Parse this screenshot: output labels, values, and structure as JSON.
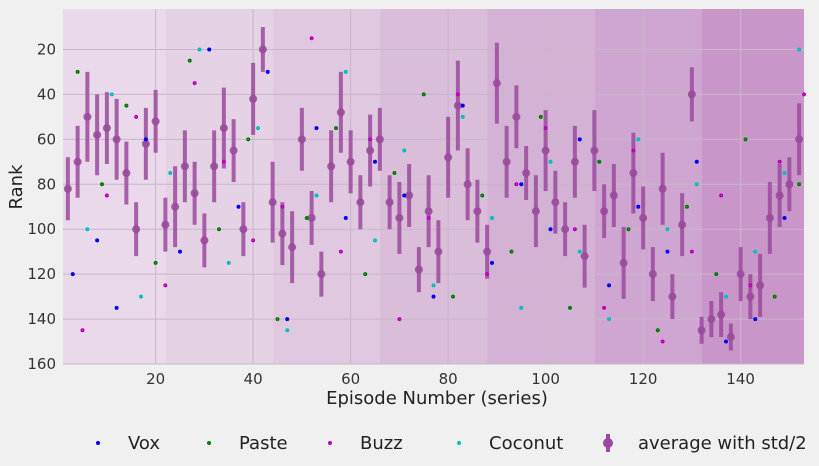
{
  "chart_data": {
    "type": "scatter",
    "title": "",
    "xlabel": "Episode Number (series)",
    "ylabel": "Rank",
    "xlim": [
      1,
      153
    ],
    "ylim": [
      160,
      2
    ],
    "x_ticks": [
      20,
      40,
      60,
      80,
      100,
      120,
      140
    ],
    "y_ticks": [
      20,
      40,
      60,
      80,
      100,
      120,
      140,
      160
    ],
    "grid": true,
    "legend_position": "bottom",
    "background_bands": [
      {
        "from": 1,
        "to": 22,
        "color": "#ead9ea"
      },
      {
        "from": 22,
        "to": 44,
        "color": "#e5d2e5"
      },
      {
        "from": 44,
        "to": 66,
        "color": "#e0c9e0"
      },
      {
        "from": 66,
        "to": 88,
        "color": "#d9bdd9"
      },
      {
        "from": 88,
        "to": 110,
        "color": "#d4b2d6"
      },
      {
        "from": 110,
        "to": 132,
        "color": "#cfa6d1"
      },
      {
        "from": 132,
        "to": 153,
        "color": "#c896c9"
      }
    ],
    "legend": [
      {
        "label": "Vox",
        "color": "#0000ee",
        "marker": "dot"
      },
      {
        "label": "Paste",
        "color": "#008000",
        "marker": "dot"
      },
      {
        "label": "Buzz",
        "color": "#c000c0",
        "marker": "dot"
      },
      {
        "label": "Coconut",
        "color": "#00bfbf",
        "marker": "dot"
      },
      {
        "label": "average with std/2",
        "color": "#9a4a9c",
        "marker": "errorbar"
      }
    ],
    "series": [
      {
        "name": "average with std/2",
        "color": "#9a4a9c",
        "x": [
          2,
          4,
          6,
          8,
          10,
          12,
          14,
          16,
          18,
          20,
          22,
          24,
          26,
          28,
          30,
          32,
          34,
          36,
          38,
          40,
          42,
          44,
          46,
          48,
          50,
          52,
          54,
          56,
          58,
          60,
          62,
          64,
          66,
          68,
          70,
          72,
          74,
          76,
          78,
          80,
          82,
          84,
          86,
          88,
          90,
          92,
          94,
          96,
          98,
          100,
          102,
          104,
          106,
          108,
          110,
          112,
          114,
          116,
          118,
          120,
          122,
          124,
          126,
          128,
          130,
          132,
          134,
          136,
          138,
          140,
          142,
          144,
          146,
          148,
          150,
          152
        ],
        "y": [
          82,
          70,
          50,
          58,
          55,
          60,
          75,
          100,
          62,
          52,
          98,
          90,
          72,
          84,
          105,
          72,
          55,
          65,
          100,
          42,
          20,
          88,
          102,
          108,
          60,
          95,
          120,
          72,
          48,
          70,
          88,
          65,
          60,
          88,
          95,
          85,
          118,
          92,
          110,
          68,
          45,
          80,
          92,
          110,
          35,
          70,
          50,
          75,
          92,
          65,
          88,
          100,
          70,
          112,
          65,
          92,
          85,
          115,
          75,
          95,
          120,
          82,
          130,
          98,
          40,
          145,
          140,
          138,
          148,
          120,
          130,
          125,
          95,
          85,
          80,
          60
        ],
        "err": [
          14,
          16,
          20,
          18,
          16,
          18,
          14,
          12,
          16,
          14,
          12,
          18,
          16,
          14,
          12,
          16,
          18,
          14,
          12,
          16,
          10,
          18,
          14,
          16,
          14,
          12,
          10,
          16,
          18,
          14,
          12,
          16,
          14,
          12,
          16,
          14,
          10,
          16,
          14,
          18,
          20,
          16,
          14,
          12,
          18,
          16,
          14,
          12,
          16,
          18,
          14,
          12,
          16,
          14,
          18,
          12,
          14,
          16,
          18,
          14,
          12,
          16,
          10,
          14,
          12,
          6,
          8,
          10,
          6,
          12,
          10,
          14,
          16,
          14,
          12,
          16
        ]
      },
      {
        "name": "Vox",
        "color": "#0000ee",
        "x": [
          3,
          8,
          12,
          18,
          25,
          31,
          37,
          43,
          47,
          53,
          59,
          65,
          71,
          77,
          83,
          89,
          95,
          101,
          107,
          113,
          119,
          125,
          131,
          137,
          143,
          149
        ],
        "y": [
          120,
          105,
          135,
          60,
          110,
          20,
          90,
          30,
          140,
          55,
          95,
          70,
          85,
          130,
          45,
          115,
          80,
          100,
          60,
          125,
          90,
          110,
          70,
          150,
          140,
          95
        ]
      },
      {
        "name": "Paste",
        "color": "#008000",
        "x": [
          4,
          9,
          14,
          20,
          27,
          33,
          39,
          45,
          51,
          57,
          63,
          69,
          75,
          81,
          87,
          93,
          99,
          105,
          111,
          117,
          123,
          129,
          135,
          141,
          147,
          152
        ],
        "y": [
          30,
          80,
          45,
          115,
          25,
          100,
          60,
          140,
          95,
          55,
          120,
          75,
          40,
          130,
          85,
          110,
          50,
          135,
          70,
          100,
          145,
          90,
          120,
          60,
          130,
          80
        ]
      },
      {
        "name": "Buzz",
        "color": "#c000c0",
        "x": [
          5,
          10,
          16,
          22,
          28,
          34,
          40,
          46,
          52,
          58,
          64,
          70,
          76,
          82,
          88,
          94,
          100,
          106,
          112,
          118,
          124,
          130,
          136,
          142,
          148,
          153
        ],
        "y": [
          145,
          85,
          50,
          125,
          35,
          70,
          105,
          90,
          15,
          110,
          60,
          140,
          95,
          40,
          120,
          80,
          55,
          100,
          135,
          65,
          150,
          110,
          85,
          125,
          70,
          40
        ]
      },
      {
        "name": "Coconut",
        "color": "#00bfbf",
        "x": [
          6,
          11,
          17,
          23,
          29,
          35,
          41,
          47,
          53,
          59,
          65,
          71,
          77,
          83,
          89,
          95,
          101,
          107,
          113,
          119,
          125,
          131,
          137,
          143,
          149,
          152
        ],
        "y": [
          100,
          40,
          130,
          75,
          20,
          115,
          55,
          145,
          85,
          30,
          105,
          65,
          125,
          50,
          95,
          135,
          70,
          110,
          140,
          60,
          100,
          80,
          130,
          110,
          75,
          20
        ]
      }
    ]
  }
}
